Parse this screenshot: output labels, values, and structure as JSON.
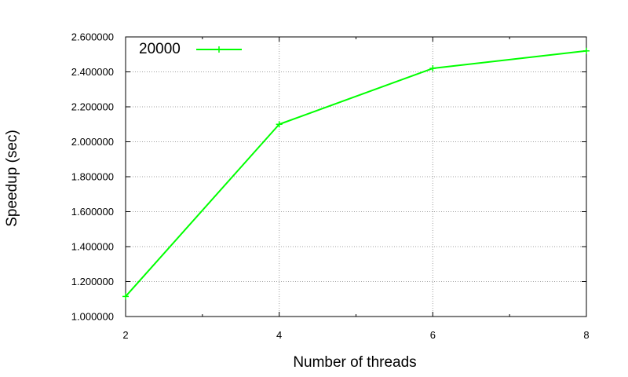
{
  "chart_data": {
    "type": "line",
    "title": "",
    "xlabel": "Number of threads",
    "ylabel": "Speedup (sec)",
    "xlim": [
      2,
      8
    ],
    "ylim": [
      1.0,
      2.6
    ],
    "x_ticks": [
      2,
      4,
      6,
      8
    ],
    "x_tick_labels": [
      "2",
      "4",
      "6",
      "8"
    ],
    "x_minor_ticks": [
      3,
      5,
      7
    ],
    "y_ticks": [
      1.0,
      1.2,
      1.4,
      1.6,
      1.8,
      2.0,
      2.2,
      2.4,
      2.6
    ],
    "y_tick_labels": [
      "1.000000",
      "1.200000",
      "1.400000",
      "1.600000",
      "1.800000",
      "2.000000",
      "2.200000",
      "2.400000",
      "2.600000"
    ],
    "grid": true,
    "legend_position": "top-left",
    "series": [
      {
        "name": "20000",
        "color": "#00ff00",
        "marker": "plus",
        "x": [
          2,
          4,
          6,
          8
        ],
        "y": [
          1.115,
          2.1,
          2.42,
          2.52
        ]
      }
    ]
  }
}
